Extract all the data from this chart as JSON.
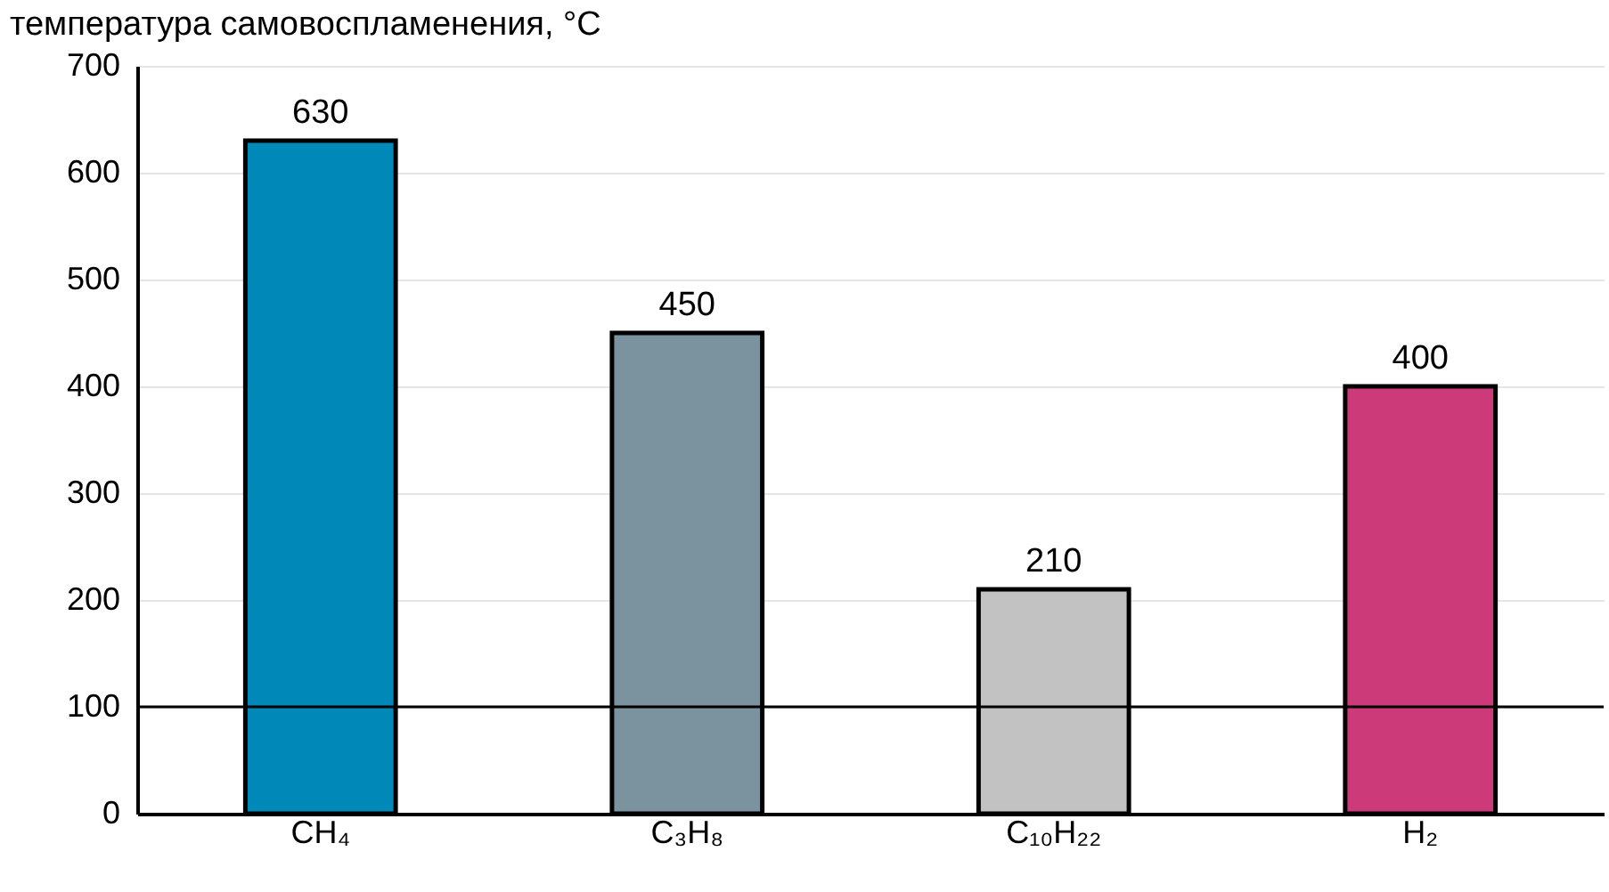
{
  "chart_data": {
    "type": "bar",
    "ylabel": "температура самовоспламенения, °C",
    "categories": [
      "CH₄",
      "C₃H₈",
      "C₁₀H₂₂",
      "H₂"
    ],
    "values": [
      630,
      450,
      210,
      400
    ],
    "colors": [
      "#0088b8",
      "#7b939e",
      "#c2c2c2",
      "#cc3a7a"
    ],
    "ylim": [
      0,
      700
    ],
    "yticks": [
      0,
      100,
      200,
      300,
      400,
      500,
      600,
      700
    ],
    "grid": "y",
    "data_labels": true,
    "ref_lines": [
      {
        "axis": "y",
        "value": 100,
        "color": "#000000"
      }
    ]
  }
}
